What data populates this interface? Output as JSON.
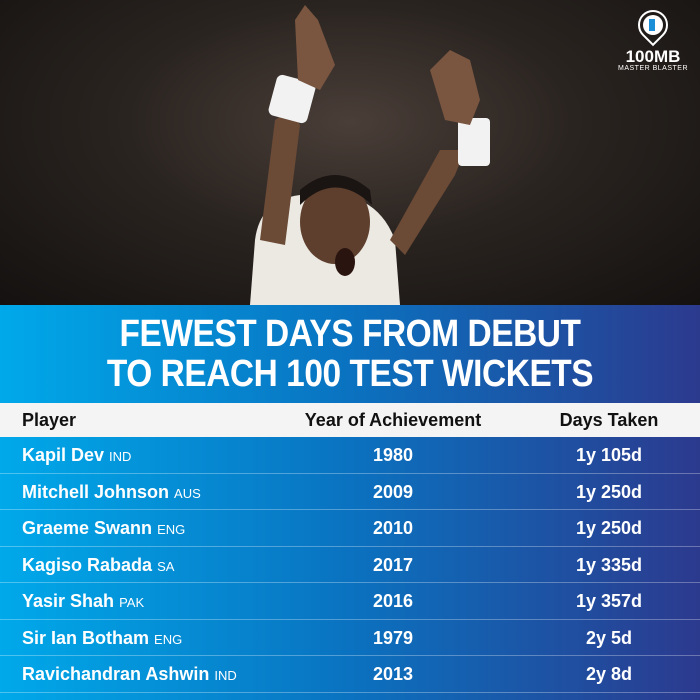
{
  "logo": {
    "brand": "100MB",
    "tagline": "MASTER BLASTER"
  },
  "title": {
    "line1": "FEWEST DAYS FROM DEBUT",
    "line2": "TO REACH 100 TEST WICKETS"
  },
  "table": {
    "headers": [
      "Player",
      "Year of Achievement",
      "Days Taken"
    ],
    "rows": [
      {
        "player": "Kapil Dev",
        "country": "IND",
        "year": "1980",
        "days": "1y 105d"
      },
      {
        "player": "Mitchell Johnson",
        "country": "AUS",
        "year": "2009",
        "days": "1y 250d"
      },
      {
        "player": "Graeme Swann",
        "country": "ENG",
        "year": "2010",
        "days": "1y 250d"
      },
      {
        "player": "Kagiso Rabada",
        "country": "SA",
        "year": "2017",
        "days": "1y 335d"
      },
      {
        "player": "Yasir Shah",
        "country": "PAK",
        "year": "2016",
        "days": "1y 357d"
      },
      {
        "player": "Sir Ian Botham",
        "country": "ENG",
        "year": "1979",
        "days": "2y 5d"
      },
      {
        "player": "Ravichandran Ashwin",
        "country": "IND",
        "year": "2013",
        "days": "2y 8d"
      }
    ]
  },
  "colors": {
    "gradient_start": "#00a9ea",
    "gradient_end": "#2c3a8e",
    "header_bg": "#f4f4f4"
  }
}
